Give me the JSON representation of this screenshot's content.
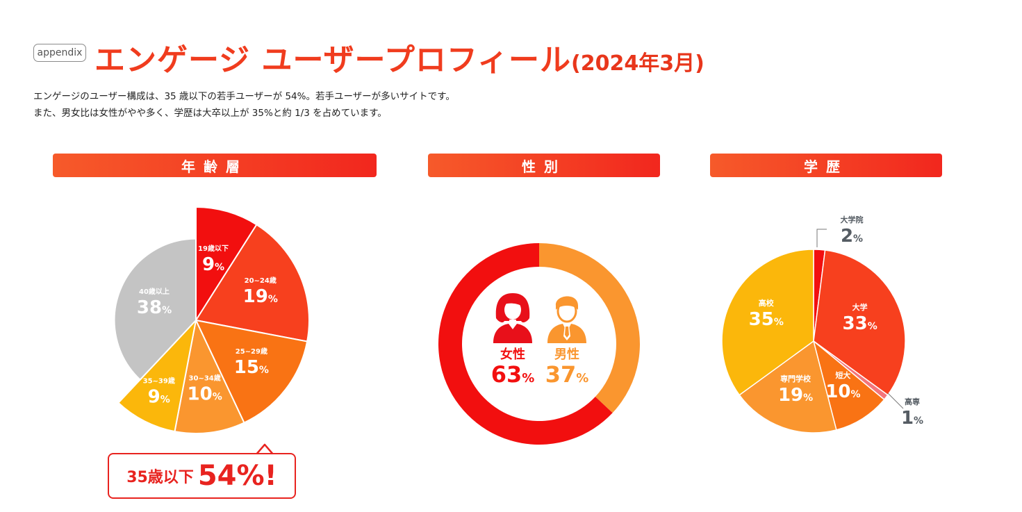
{
  "header": {
    "tag": "appendix",
    "title": "エンゲージ ユーザープロフィール",
    "title_date": "(2024年3月)",
    "desc_line1": "エンゲージのユーザー構成は、35 歳以下の若手ユーザーが 54%。若手ユーザーが多いサイトです。",
    "desc_line2": "また、男女比は女性がやや多く、学歴は大卒以上が 35%と約 1/3 を占めています。"
  },
  "sections": {
    "age": "年齢層",
    "gender": "性別",
    "education": "学歴"
  },
  "callout": {
    "prefix": "35歳以下",
    "value": "54%!"
  },
  "colors": {
    "red": "#f20f0f",
    "orange_red": "#f7401e",
    "orange": "#f97314",
    "light_orange": "#fa962f",
    "amber": "#fbb70b",
    "gray": "#c4c4c4",
    "dark_gray": "#555c63"
  },
  "chart_data": [
    {
      "type": "pie",
      "name": "age",
      "categories": [
        "19歳以下",
        "20~24歳",
        "25~29歳",
        "30~34歳",
        "35~39歳",
        "40歳以上"
      ],
      "values": [
        9,
        19,
        15,
        10,
        9,
        38
      ],
      "labels": [
        "9%",
        "19%",
        "15%",
        "10%",
        "9%",
        "38%"
      ],
      "colors": [
        "#f20f0f",
        "#f7401e",
        "#f97314",
        "#fa962f",
        "#fbb70b",
        "#c4c4c4"
      ],
      "exploded": [
        true,
        true,
        true,
        true,
        true,
        false
      ]
    },
    {
      "type": "pie",
      "name": "gender",
      "donut": true,
      "categories": [
        "女性",
        "男性"
      ],
      "values": [
        63,
        37
      ],
      "labels": [
        "63%",
        "37%"
      ],
      "colors": [
        "#f20f0f",
        "#fa962f"
      ]
    },
    {
      "type": "pie",
      "name": "education",
      "categories": [
        "大学院",
        "大学",
        "高専",
        "短大",
        "専門学校",
        "高校"
      ],
      "values": [
        2,
        33,
        1,
        10,
        19,
        35
      ],
      "labels": [
        "2%",
        "33%",
        "1%",
        "10%",
        "19%",
        "35%"
      ],
      "colors": [
        "#f20f0f",
        "#f7401e",
        "#f4757a",
        "#f97314",
        "#fa962f",
        "#fbb70b"
      ]
    }
  ]
}
